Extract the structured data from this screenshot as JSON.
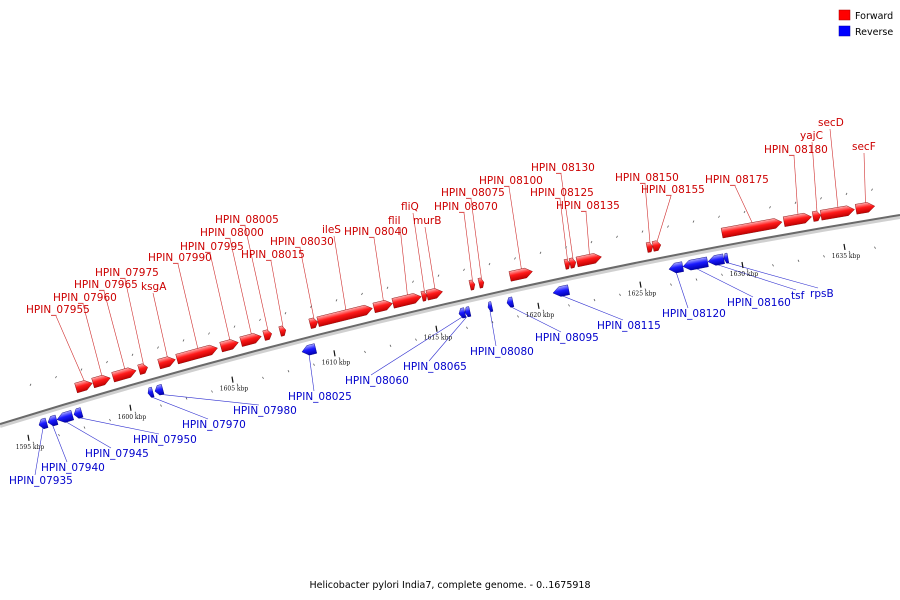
{
  "legend": {
    "forward_label": "Forward",
    "reverse_label": "Reverse",
    "forward_color": "#ff0000",
    "reverse_color": "#0000ff"
  },
  "caption": "Helicobacter pylori India7, complete genome. - 0..1675918",
  "genome": {
    "name": "Helicobacter pylori India7",
    "length": 1675918
  },
  "ticks": [
    {
      "kbp": 1595,
      "label": "1595 kbp"
    },
    {
      "kbp": 1600,
      "label": "1600 kbp"
    },
    {
      "kbp": 1605,
      "label": "1605 kbp"
    },
    {
      "kbp": 1610,
      "label": "1610 kbp"
    },
    {
      "kbp": 1615,
      "label": "1615 kbp"
    },
    {
      "kbp": 1620,
      "label": "1620 kbp"
    },
    {
      "kbp": 1625,
      "label": "1625 kbp"
    },
    {
      "kbp": 1630,
      "label": "1630 kbp"
    },
    {
      "kbp": 1635,
      "label": "1635 kbp"
    }
  ],
  "forward_genes": [
    "HPIN_07955",
    "HPIN_07960",
    "HPIN_07965",
    "HPIN_07975",
    "ksgA",
    "HPIN_07990",
    "HPIN_07995",
    "HPIN_08000",
    "HPIN_08005",
    "HPIN_08015",
    "HPIN_08030",
    "ileS",
    "HPIN_08040",
    "fliI",
    "fliQ",
    "murB",
    "HPIN_08070",
    "HPIN_08075",
    "HPIN_08100",
    "HPIN_08125",
    "HPIN_08130",
    "HPIN_08135",
    "HPIN_08150",
    "HPIN_08155",
    "HPIN_08175",
    "HPIN_08180",
    "yajC",
    "secD",
    "secF"
  ],
  "reverse_genes": [
    "HPIN_07935",
    "HPIN_07940",
    "HPIN_07945",
    "HPIN_07950",
    "HPIN_07970",
    "HPIN_07980",
    "HPIN_08025",
    "HPIN_08060",
    "HPIN_08065",
    "HPIN_08080",
    "HPIN_08095",
    "HPIN_08115",
    "HPIN_08120",
    "HPIN_08160",
    "tsf",
    "rpsB"
  ]
}
